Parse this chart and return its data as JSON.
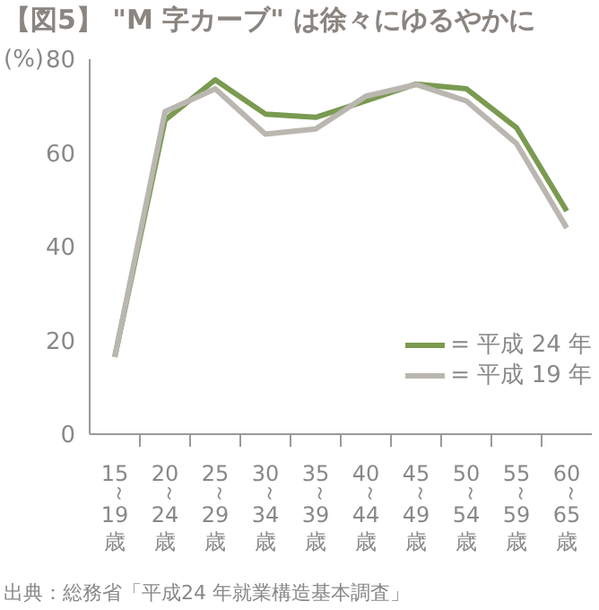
{
  "chart_data": {
    "type": "line",
    "title": "【図5】 \"M 字カーブ\" は徐々にゆるやかに",
    "ylabel": "(%)",
    "categories": [
      "15～19歳",
      "20～24歳",
      "25～29歳",
      "30～34歳",
      "35～39歳",
      "40～44歳",
      "45～49歳",
      "50～54歳",
      "55～59歳",
      "60～65歳"
    ],
    "series": [
      {
        "name": "= 平成 24 年",
        "color": "#7a9a50",
        "values": [
          16.5,
          67,
          75.6,
          68.3,
          67.6,
          71.1,
          74.7,
          73.7,
          65.4,
          47.6
        ]
      },
      {
        "name": "= 平成 19 年",
        "color": "#bab6b0",
        "values": [
          16.5,
          68.8,
          73.7,
          64,
          65.1,
          72.1,
          74.6,
          71.1,
          62,
          44
        ]
      }
    ],
    "ylim": [
      0,
      80
    ],
    "yticks": [
      0,
      20,
      40,
      60,
      80
    ],
    "grid": false,
    "legend": "bottom right",
    "marker": "none",
    "line_style": "solid",
    "annotations": [
      "出典：総務省「平成24 年就業構造基本調査」"
    ]
  }
}
